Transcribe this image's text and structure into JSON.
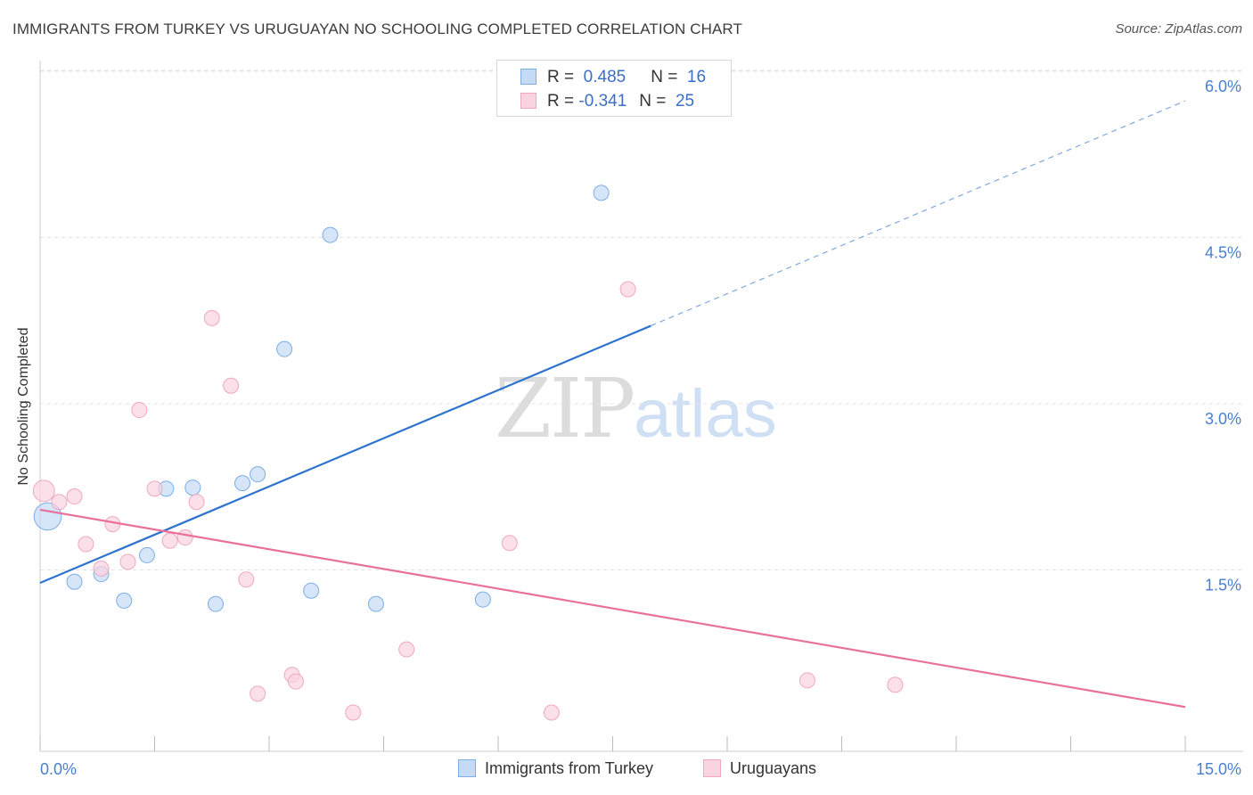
{
  "header": {
    "title": "IMMIGRANTS FROM TURKEY VS URUGUAYAN NO SCHOOLING COMPLETED CORRELATION CHART",
    "source": "Source: ZipAtlas.com"
  },
  "legend": {
    "rows": [
      {
        "r_label": "R =",
        "r_value": "0.485",
        "n_label": "N =",
        "n_value": "16"
      },
      {
        "r_label": "R =",
        "r_value": "-0.341",
        "n_label": "N =",
        "n_value": "25"
      }
    ]
  },
  "watermark": {
    "zip": "ZIP",
    "atlas": "atlas"
  },
  "chart_data": {
    "type": "scatter",
    "ylabel": "No Schooling Completed",
    "xlim": [
      0,
      15
    ],
    "ylim": [
      0,
      6.2
    ],
    "x_tick_labels": [
      "0.0%",
      "15.0%"
    ],
    "y_ticks": [
      1.5,
      3.0,
      4.5,
      6.0
    ],
    "y_tick_labels": [
      "1.5%",
      "3.0%",
      "4.5%",
      "6.0%"
    ],
    "grid": true,
    "legend_position": "top-center",
    "series": [
      {
        "name": "Immigrants from Turkey",
        "color": "#7baee8",
        "fill": "#c5daf5",
        "line_color": "#2e74cf",
        "points": [
          [
            0.1,
            2.12,
            1.8
          ],
          [
            0.45,
            1.53,
            1
          ],
          [
            0.8,
            1.6,
            1
          ],
          [
            1.1,
            1.36,
            1
          ],
          [
            1.4,
            1.77,
            1
          ],
          [
            1.65,
            2.37,
            1
          ],
          [
            2.0,
            2.38,
            1
          ],
          [
            2.3,
            1.33,
            1
          ],
          [
            2.65,
            2.42,
            1
          ],
          [
            2.85,
            2.5,
            1
          ],
          [
            3.2,
            3.63,
            1
          ],
          [
            3.55,
            1.45,
            1
          ],
          [
            3.8,
            4.66,
            1
          ],
          [
            4.4,
            1.33,
            1
          ],
          [
            5.8,
            1.37,
            1
          ],
          [
            7.35,
            5.04,
            1
          ]
        ],
        "trend": {
          "x0": 0.0,
          "y0": 1.52,
          "x1": 8.0,
          "y1": 3.84,
          "dash_to_x": 15.0,
          "dash_to_y": 5.87
        }
      },
      {
        "name": "Uruguayans",
        "color": "#f0a8c0",
        "fill": "#f9d3e0",
        "line_color": "#e8709a",
        "points": [
          [
            0.05,
            2.35,
            1.4
          ],
          [
            0.25,
            2.25,
            1
          ],
          [
            0.45,
            2.3,
            1
          ],
          [
            0.6,
            1.87,
            1
          ],
          [
            0.8,
            1.65,
            1
          ],
          [
            0.95,
            2.05,
            1
          ],
          [
            1.15,
            1.71,
            1
          ],
          [
            1.3,
            3.08,
            1
          ],
          [
            1.5,
            2.37,
            1
          ],
          [
            1.7,
            1.9,
            1
          ],
          [
            1.9,
            1.93,
            1
          ],
          [
            2.05,
            2.25,
            1
          ],
          [
            2.25,
            3.91,
            1
          ],
          [
            2.5,
            3.3,
            1
          ],
          [
            2.7,
            1.55,
            1
          ],
          [
            2.85,
            0.52,
            1
          ],
          [
            3.3,
            0.69,
            1
          ],
          [
            3.35,
            0.63,
            1
          ],
          [
            4.1,
            0.35,
            1
          ],
          [
            4.8,
            0.92,
            1
          ],
          [
            6.15,
            1.88,
            1
          ],
          [
            6.7,
            0.35,
            1
          ],
          [
            7.7,
            4.17,
            1
          ],
          [
            10.05,
            0.64,
            1
          ],
          [
            11.2,
            0.6,
            1
          ]
        ],
        "trend": {
          "x0": 0.0,
          "y0": 2.18,
          "x1": 15.0,
          "y1": 0.4
        }
      }
    ]
  },
  "bottom_legend": {
    "items": [
      {
        "label": "Immigrants from Turkey"
      },
      {
        "label": "Uruguayans"
      }
    ]
  }
}
